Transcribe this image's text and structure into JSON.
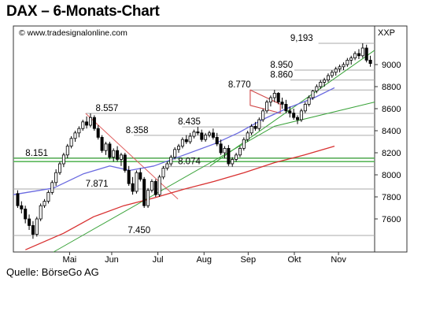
{
  "title": "DAX – 6-Monats-Chart",
  "source": "Quelle: BörseGo AG",
  "watermark": "© www.tradesignalonline.com",
  "symbol": "XXP",
  "chart_data": {
    "type": "candlestick",
    "ylim": [
      7300,
      9350
    ],
    "x_range": [
      0,
      180
    ],
    "y_ticks": [
      {
        "v": 9000,
        "label": "9000"
      },
      {
        "v": 8800,
        "label": "8800"
      },
      {
        "v": 8600,
        "label": "8600"
      },
      {
        "v": 8400,
        "label": "8400"
      },
      {
        "v": 8200,
        "label": "8200"
      },
      {
        "v": 8000,
        "label": "8000"
      },
      {
        "v": 7800,
        "label": "7800"
      },
      {
        "v": 7600,
        "label": "7600"
      }
    ],
    "x_ticks": [
      {
        "x": 28,
        "label": "Mai"
      },
      {
        "x": 49,
        "label": "Jun"
      },
      {
        "x": 72,
        "label": "Jul"
      },
      {
        "x": 95,
        "label": "Aug"
      },
      {
        "x": 117,
        "label": "Sep"
      },
      {
        "x": 140,
        "label": "Okt"
      },
      {
        "x": 162,
        "label": "Nov"
      }
    ],
    "price_levels": [
      {
        "label": "9,193",
        "value": 9193,
        "x_start": 152,
        "lx": 138
      },
      {
        "label": "8.950",
        "value": 8950,
        "x_start": 140,
        "lx": 128
      },
      {
        "label": "8.860",
        "value": 8860,
        "x_start": 138,
        "lx": 128
      },
      {
        "label": "8.770",
        "value": 8770,
        "x_start": 118,
        "lx": 107
      },
      {
        "label": "8.557",
        "value": 8557,
        "x_start": 36,
        "lx": 41
      },
      {
        "label": "8.435",
        "value": 8435,
        "x_start": 84,
        "lx": 82
      },
      {
        "label": "8.358",
        "value": 8358,
        "x_start": 60,
        "lx": 56
      },
      {
        "label": "8.151",
        "value": 8151,
        "x_start": 0,
        "lx": 6,
        "color": "#58a858"
      },
      {
        "label": "8.074",
        "value": 8074,
        "x_start": 74,
        "lx": 82
      },
      {
        "label": "7.871",
        "value": 7871,
        "x_start": 0,
        "lx": 36
      },
      {
        "label": "7.450",
        "value": 7450,
        "x_start": 0,
        "lx": 57
      }
    ],
    "ohlc": [
      [
        7830,
        7860,
        7700,
        7720
      ],
      [
        7720,
        7760,
        7650,
        7690
      ],
      [
        7690,
        7720,
        7560,
        7600
      ],
      [
        7600,
        7640,
        7500,
        7540
      ],
      [
        7540,
        7580,
        7420,
        7460
      ],
      [
        7460,
        7620,
        7440,
        7600
      ],
      [
        7600,
        7740,
        7580,
        7720
      ],
      [
        7720,
        7780,
        7700,
        7760
      ],
      [
        7760,
        7860,
        7740,
        7840
      ],
      [
        7840,
        7950,
        7820,
        7930
      ],
      [
        7930,
        8050,
        7900,
        8020
      ],
      [
        8020,
        8120,
        8000,
        8100
      ],
      [
        8100,
        8200,
        8070,
        8180
      ],
      [
        8180,
        8280,
        8150,
        8260
      ],
      [
        8260,
        8350,
        8240,
        8330
      ],
      [
        8330,
        8400,
        8300,
        8380
      ],
      [
        8380,
        8440,
        8340,
        8420
      ],
      [
        8420,
        8500,
        8400,
        8480
      ],
      [
        8480,
        8530,
        8420,
        8450
      ],
      [
        8450,
        8557,
        8430,
        8520
      ],
      [
        8520,
        8540,
        8400,
        8420
      ],
      [
        8420,
        8450,
        8320,
        8340
      ],
      [
        8340,
        8360,
        8200,
        8220
      ],
      [
        8220,
        8300,
        8180,
        8280
      ],
      [
        8280,
        8300,
        8140,
        8160
      ],
      [
        8160,
        8240,
        8120,
        8220
      ],
      [
        8220,
        8260,
        8120,
        8140
      ],
      [
        8140,
        8200,
        8080,
        8180
      ],
      [
        8180,
        8200,
        8020,
        8040
      ],
      [
        8040,
        8080,
        7900,
        7920
      ],
      [
        7920,
        7980,
        7820,
        7850
      ],
      [
        7850,
        8040,
        7830,
        8020
      ],
      [
        8020,
        8060,
        7940,
        7960
      ],
      [
        7960,
        7980,
        7700,
        7720
      ],
      [
        7720,
        7880,
        7700,
        7860
      ],
      [
        7860,
        7960,
        7840,
        7940
      ],
      [
        7940,
        7960,
        7800,
        7820
      ],
      [
        7820,
        8000,
        7800,
        7980
      ],
      [
        7980,
        8080,
        7960,
        8060
      ],
      [
        8060,
        8120,
        8040,
        8100
      ],
      [
        8100,
        8180,
        8080,
        8160
      ],
      [
        8160,
        8250,
        8140,
        8230
      ],
      [
        8230,
        8280,
        8200,
        8260
      ],
      [
        8260,
        8340,
        8240,
        8320
      ],
      [
        8320,
        8360,
        8280,
        8300
      ],
      [
        8300,
        8380,
        8280,
        8350
      ],
      [
        8350,
        8410,
        8330,
        8390
      ],
      [
        8390,
        8435,
        8360,
        8380
      ],
      [
        8380,
        8410,
        8300,
        8320
      ],
      [
        8320,
        8380,
        8300,
        8360
      ],
      [
        8360,
        8400,
        8340,
        8380
      ],
      [
        8380,
        8420,
        8320,
        8340
      ],
      [
        8340,
        8380,
        8260,
        8280
      ],
      [
        8280,
        8320,
        8180,
        8200
      ],
      [
        8200,
        8260,
        8150,
        8240
      ],
      [
        8240,
        8270,
        8080,
        8100
      ],
      [
        8100,
        8160,
        8074,
        8140
      ],
      [
        8140,
        8200,
        8120,
        8180
      ],
      [
        8180,
        8260,
        8160,
        8240
      ],
      [
        8240,
        8340,
        8220,
        8320
      ],
      [
        8320,
        8400,
        8300,
        8380
      ],
      [
        8380,
        8460,
        8360,
        8440
      ],
      [
        8440,
        8480,
        8400,
        8420
      ],
      [
        8420,
        8520,
        8400,
        8500
      ],
      [
        8500,
        8600,
        8480,
        8580
      ],
      [
        8580,
        8680,
        8560,
        8660
      ],
      [
        8660,
        8720,
        8620,
        8700
      ],
      [
        8700,
        8770,
        8660,
        8740
      ],
      [
        8740,
        8750,
        8640,
        8660
      ],
      [
        8660,
        8700,
        8600,
        8640
      ],
      [
        8640,
        8680,
        8560,
        8580
      ],
      [
        8580,
        8620,
        8520,
        8560
      ],
      [
        8560,
        8600,
        8500,
        8520
      ],
      [
        8520,
        8540,
        8460,
        8500
      ],
      [
        8500,
        8600,
        8480,
        8580
      ],
      [
        8580,
        8660,
        8560,
        8640
      ],
      [
        8640,
        8720,
        8620,
        8700
      ],
      [
        8700,
        8770,
        8680,
        8760
      ],
      [
        8760,
        8820,
        8740,
        8800
      ],
      [
        8800,
        8860,
        8780,
        8840
      ],
      [
        8840,
        8880,
        8800,
        8860
      ],
      [
        8860,
        8920,
        8840,
        8900
      ],
      [
        8900,
        8950,
        8880,
        8930
      ],
      [
        8930,
        8980,
        8900,
        8960
      ],
      [
        8960,
        9000,
        8930,
        8980
      ],
      [
        8980,
        9020,
        8950,
        9000
      ],
      [
        9000,
        9060,
        8980,
        9040
      ],
      [
        9040,
        9080,
        9000,
        9060
      ],
      [
        9060,
        9120,
        9040,
        9100
      ],
      [
        9100,
        9140,
        9050,
        9080
      ],
      [
        9080,
        9193,
        9060,
        9150
      ],
      [
        9150,
        9180,
        9020,
        9040
      ],
      [
        9040,
        9080,
        8980,
        9010
      ]
    ],
    "ma_blue": [
      [
        0,
        7820
      ],
      [
        20,
        7880
      ],
      [
        35,
        8010
      ],
      [
        48,
        8080
      ],
      [
        58,
        8040
      ],
      [
        70,
        8080
      ],
      [
        85,
        8180
      ],
      [
        100,
        8280
      ],
      [
        112,
        8380
      ],
      [
        124,
        8500
      ],
      [
        136,
        8600
      ],
      [
        150,
        8700
      ],
      [
        160,
        8790
      ]
    ],
    "ma_red": [
      [
        6,
        7320
      ],
      [
        25,
        7470
      ],
      [
        40,
        7620
      ],
      [
        55,
        7720
      ],
      [
        70,
        7790
      ],
      [
        85,
        7870
      ],
      [
        100,
        7940
      ],
      [
        115,
        8020
      ],
      [
        130,
        8110
      ],
      [
        145,
        8180
      ],
      [
        160,
        8260
      ]
    ],
    "trend_green_1": [
      [
        20,
        7300
      ],
      [
        130,
        8440
      ],
      [
        180,
        8660
      ]
    ],
    "trend_green_2": [
      [
        98,
        8080
      ],
      [
        180,
        9130
      ]
    ],
    "trend_red_down": [
      [
        36,
        8557
      ],
      [
        82,
        7780
      ]
    ],
    "wedge_red": [
      [
        118,
        8770
      ],
      [
        133,
        8640
      ],
      [
        133,
        8560
      ],
      [
        118,
        8630
      ]
    ],
    "green_horizontal": 8151,
    "green_horizontal_2": 8120
  }
}
